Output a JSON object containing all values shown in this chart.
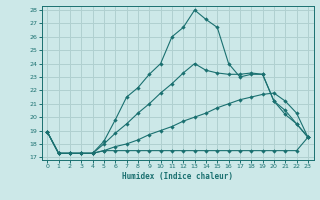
{
  "xlabel": "Humidex (Indice chaleur)",
  "ylabel": "",
  "xlim": [
    -0.5,
    23.5
  ],
  "ylim": [
    16.8,
    28.3
  ],
  "background_color": "#cce8e8",
  "grid_color": "#b0d0d0",
  "line_color": "#1a7070",
  "line1_x": [
    0,
    1,
    2,
    3,
    4,
    5,
    6,
    7,
    8,
    9,
    10,
    11,
    12,
    13,
    14,
    15,
    16,
    17,
    18,
    19,
    20,
    21,
    22,
    23
  ],
  "line1_y": [
    18.9,
    17.3,
    17.3,
    17.3,
    17.3,
    17.5,
    17.5,
    17.5,
    17.5,
    17.5,
    17.5,
    17.5,
    17.5,
    17.5,
    17.5,
    17.5,
    17.5,
    17.5,
    17.5,
    17.5,
    17.5,
    17.5,
    17.5,
    18.5
  ],
  "line2_x": [
    0,
    1,
    2,
    3,
    4,
    5,
    6,
    7,
    8,
    9,
    10,
    11,
    12,
    13,
    14,
    15,
    16,
    17,
    18,
    19,
    20,
    21,
    22,
    23
  ],
  "line2_y": [
    18.9,
    17.3,
    17.3,
    17.3,
    17.3,
    17.5,
    17.8,
    18.0,
    18.3,
    18.7,
    19.0,
    19.3,
    19.7,
    20.0,
    20.3,
    20.7,
    21.0,
    21.3,
    21.5,
    21.7,
    21.8,
    21.2,
    20.3,
    18.5
  ],
  "line3_x": [
    0,
    1,
    2,
    3,
    4,
    5,
    6,
    7,
    8,
    9,
    10,
    11,
    12,
    13,
    14,
    15,
    16,
    17,
    18,
    19,
    20,
    21,
    22,
    23
  ],
  "line3_y": [
    18.9,
    17.3,
    17.3,
    17.3,
    17.3,
    18.0,
    18.8,
    19.5,
    20.3,
    21.0,
    21.8,
    22.5,
    23.3,
    24.0,
    23.5,
    23.3,
    23.2,
    23.2,
    23.3,
    23.2,
    21.2,
    20.5,
    19.5,
    18.5
  ],
  "line4_x": [
    0,
    1,
    2,
    3,
    4,
    5,
    6,
    7,
    8,
    9,
    10,
    11,
    12,
    13,
    14,
    15,
    16,
    17,
    18,
    19,
    20,
    21,
    22,
    23
  ],
  "line4_y": [
    18.9,
    17.3,
    17.3,
    17.3,
    17.3,
    18.2,
    19.8,
    21.5,
    22.2,
    23.2,
    24.0,
    26.0,
    26.7,
    28.0,
    27.3,
    26.7,
    24.0,
    23.0,
    23.2,
    23.2,
    21.2,
    20.2,
    19.5,
    18.5
  ],
  "yticks": [
    17,
    18,
    19,
    20,
    21,
    22,
    23,
    24,
    25,
    26,
    27,
    28
  ],
  "xticks": [
    0,
    1,
    2,
    3,
    4,
    5,
    6,
    7,
    8,
    9,
    10,
    11,
    12,
    13,
    14,
    15,
    16,
    17,
    18,
    19,
    20,
    21,
    22,
    23
  ]
}
